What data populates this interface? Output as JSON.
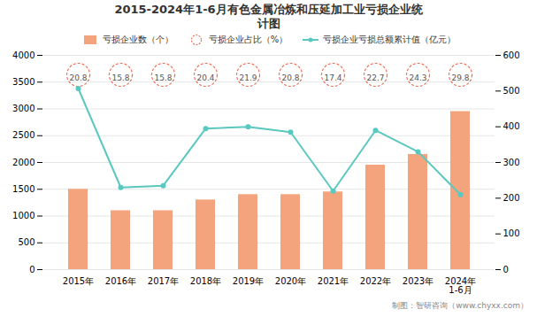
{
  "chart_data": {
    "type": "bar",
    "title": "2015-2024年1-6月有色金属冶炼和压延加工业亏损企业统\n计图",
    "categories": [
      "2015年",
      "2016年",
      "2017年",
      "2018年",
      "2019年",
      "2020年",
      "2021年",
      "2022年",
      "2023年",
      "2024年\n1-6月"
    ],
    "series": [
      {
        "name": "亏损企业数（个）",
        "type": "bar",
        "color": "#F4A47C",
        "values": [
          1500,
          1100,
          1100,
          1300,
          1400,
          1400,
          1450,
          1950,
          2150,
          2950
        ]
      },
      {
        "name": "亏损企业占比（%）",
        "type": "label",
        "color": "#E8735A",
        "marker": "circle",
        "line_style": "dashed",
        "values": [
          20.8,
          15.8,
          15.8,
          20.4,
          21.9,
          20.8,
          17.4,
          22.7,
          24.3,
          29.8
        ]
      },
      {
        "name": "亏损企业亏损总额累计值（亿元）",
        "type": "line",
        "color": "#5BC8C0",
        "marker": "circle",
        "axis": "y2",
        "values": [
          507,
          230,
          235,
          395,
          400,
          385,
          220,
          390,
          330,
          210
        ]
      }
    ],
    "ylim": [
      0,
      4000
    ],
    "yticks": [
      0,
      500,
      1000,
      1500,
      2000,
      2500,
      3000,
      3500,
      4000
    ],
    "y2lim": [
      0,
      600
    ],
    "y2ticks": [
      0,
      100,
      200,
      300,
      400,
      500,
      600
    ],
    "grid": true,
    "legend": "top",
    "caption": "制图：智研咨询（www.chyxx.com）"
  }
}
